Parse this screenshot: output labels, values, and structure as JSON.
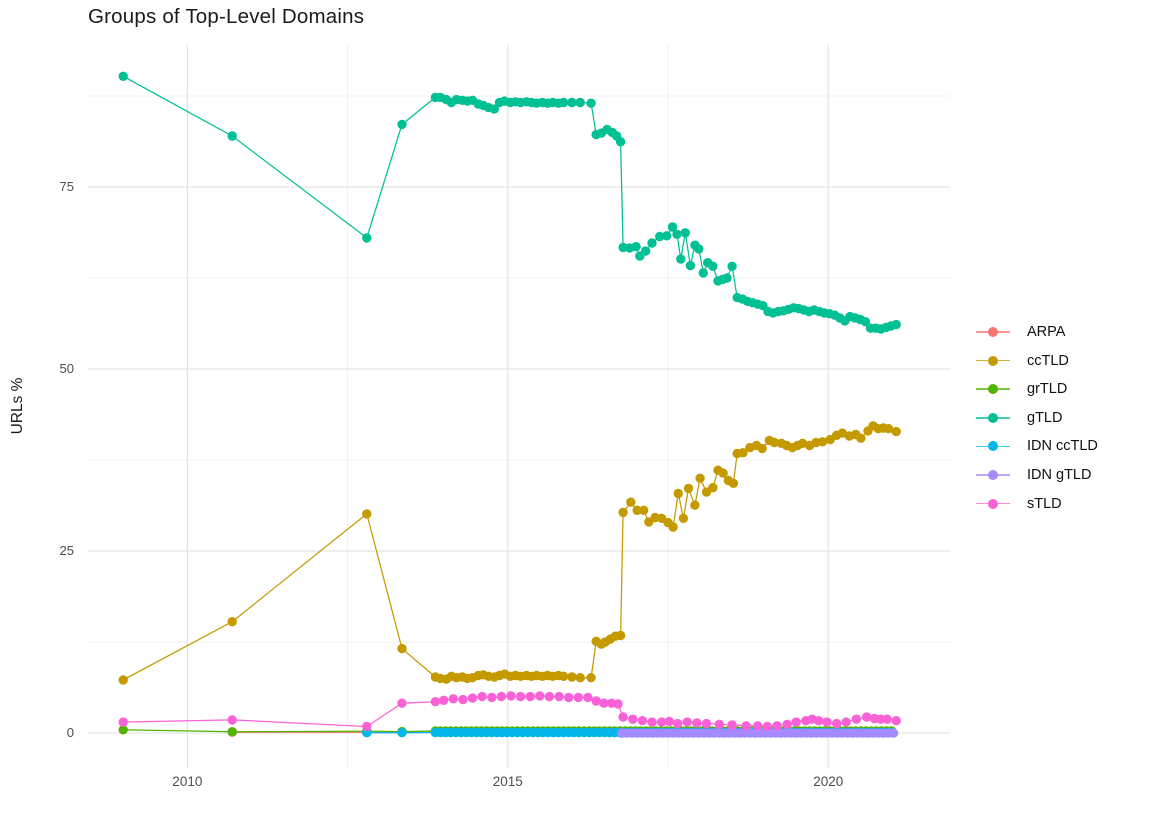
{
  "chart_data": {
    "type": "scatter",
    "title": "Groups of Top-Level Domains",
    "xlabel": "",
    "ylabel": "URLs %",
    "grid": true,
    "legend_position": "right",
    "xlim": [
      2008.45,
      2021.9
    ],
    "ylim": [
      -4.8,
      94.5
    ],
    "x_ticks": [
      {
        "value": 2010,
        "label": "2010"
      },
      {
        "value": 2015,
        "label": "2015"
      },
      {
        "value": 2020,
        "label": "2020"
      }
    ],
    "x_minor": [
      2012.5,
      2017.5
    ],
    "y_ticks": [
      {
        "value": 0,
        "label": "0"
      },
      {
        "value": 25,
        "label": "25"
      },
      {
        "value": 50,
        "label": "50"
      },
      {
        "value": 75,
        "label": "75"
      }
    ],
    "y_minor": [
      12.5,
      37.5,
      62.5,
      87.5
    ],
    "style": {
      "background": "#ffffff",
      "grid_major": "#e3e3e3",
      "grid_minor": "#efefef"
    },
    "series": [
      {
        "name": "ARPA",
        "color": "#F8766D",
        "points": [
          [
            2010.7,
            0.12
          ],
          [
            2012.8,
            0.12
          ],
          [
            2013.35,
            0.12
          ]
        ],
        "runs": [
          {
            "x0": 2013.87,
            "x1": 2021.06,
            "step": 0.08,
            "v": 0.12
          }
        ]
      },
      {
        "name": "ccTLD",
        "color": "#C49A00",
        "points": [
          [
            2009.0,
            7.3
          ],
          [
            2010.7,
            15.3
          ],
          [
            2012.8,
            30.1
          ],
          [
            2013.35,
            11.6
          ],
          [
            2013.87,
            7.7
          ],
          [
            2013.95,
            7.5
          ],
          [
            2014.04,
            7.4
          ],
          [
            2014.12,
            7.8
          ],
          [
            2014.2,
            7.6
          ],
          [
            2014.29,
            7.7
          ],
          [
            2014.37,
            7.5
          ],
          [
            2014.45,
            7.6
          ],
          [
            2014.54,
            7.9
          ],
          [
            2014.62,
            8.0
          ],
          [
            2014.7,
            7.8
          ],
          [
            2014.79,
            7.7
          ],
          [
            2014.87,
            7.9
          ],
          [
            2014.95,
            8.1
          ],
          [
            2015.04,
            7.8
          ],
          [
            2015.12,
            7.9
          ],
          [
            2015.2,
            7.8
          ],
          [
            2015.29,
            7.9
          ],
          [
            2015.37,
            7.8
          ],
          [
            2015.45,
            7.9
          ],
          [
            2015.54,
            7.8
          ],
          [
            2015.62,
            7.9
          ],
          [
            2015.7,
            7.8
          ],
          [
            2015.79,
            7.9
          ],
          [
            2015.87,
            7.8
          ],
          [
            2016.0,
            7.7
          ],
          [
            2016.13,
            7.6
          ],
          [
            2016.3,
            7.6
          ],
          [
            2016.38,
            12.6
          ],
          [
            2016.46,
            12.2
          ],
          [
            2016.52,
            12.5
          ],
          [
            2016.6,
            12.9
          ],
          [
            2016.68,
            13.3
          ],
          [
            2016.76,
            13.4
          ],
          [
            2016.8,
            30.3
          ],
          [
            2016.92,
            31.7
          ],
          [
            2017.02,
            30.6
          ],
          [
            2017.12,
            30.6
          ],
          [
            2017.2,
            29.0
          ],
          [
            2017.3,
            29.6
          ],
          [
            2017.4,
            29.5
          ],
          [
            2017.5,
            28.9
          ],
          [
            2017.58,
            28.3
          ],
          [
            2017.66,
            32.9
          ],
          [
            2017.74,
            29.5
          ],
          [
            2017.82,
            33.6
          ],
          [
            2017.92,
            31.3
          ],
          [
            2018.0,
            35.0
          ],
          [
            2018.1,
            33.1
          ],
          [
            2018.2,
            33.7
          ],
          [
            2018.28,
            36.1
          ],
          [
            2018.36,
            35.7
          ],
          [
            2018.44,
            34.7
          ],
          [
            2018.52,
            34.3
          ],
          [
            2018.58,
            38.4
          ],
          [
            2018.67,
            38.5
          ],
          [
            2018.78,
            39.2
          ],
          [
            2018.88,
            39.5
          ],
          [
            2018.97,
            39.1
          ],
          [
            2019.08,
            40.2
          ],
          [
            2019.16,
            39.9
          ],
          [
            2019.27,
            39.8
          ],
          [
            2019.35,
            39.5
          ],
          [
            2019.44,
            39.2
          ],
          [
            2019.52,
            39.5
          ],
          [
            2019.6,
            39.8
          ],
          [
            2019.71,
            39.5
          ],
          [
            2019.81,
            39.9
          ],
          [
            2019.91,
            40.0
          ],
          [
            2020.03,
            40.3
          ],
          [
            2020.13,
            40.9
          ],
          [
            2020.22,
            41.2
          ],
          [
            2020.33,
            40.8
          ],
          [
            2020.43,
            41.0
          ],
          [
            2020.51,
            40.5
          ],
          [
            2020.62,
            41.5
          ],
          [
            2020.7,
            42.2
          ],
          [
            2020.78,
            41.8
          ],
          [
            2020.86,
            41.9
          ],
          [
            2020.94,
            41.8
          ],
          [
            2021.06,
            41.4
          ]
        ],
        "runs": []
      },
      {
        "name": "grTLD",
        "color": "#53B400",
        "points": [
          [
            2009.0,
            0.45
          ],
          [
            2010.7,
            0.18
          ],
          [
            2012.8,
            0.25
          ],
          [
            2013.35,
            0.2
          ]
        ],
        "runs": [
          {
            "x0": 2013.87,
            "x1": 2021.06,
            "step": 0.08,
            "v": 0.3
          }
        ]
      },
      {
        "name": "gTLD",
        "color": "#00C094",
        "points": [
          [
            2009.0,
            90.2
          ],
          [
            2010.7,
            82.0
          ],
          [
            2012.8,
            68.0
          ],
          [
            2013.35,
            83.6
          ],
          [
            2013.87,
            87.3
          ],
          [
            2013.95,
            87.3
          ],
          [
            2014.04,
            87.0
          ],
          [
            2014.12,
            86.6
          ],
          [
            2014.2,
            87.0
          ],
          [
            2014.29,
            86.9
          ],
          [
            2014.37,
            86.8
          ],
          [
            2014.45,
            86.9
          ],
          [
            2014.54,
            86.4
          ],
          [
            2014.62,
            86.2
          ],
          [
            2014.7,
            85.9
          ],
          [
            2014.79,
            85.7
          ],
          [
            2014.87,
            86.6
          ],
          [
            2014.95,
            86.8
          ],
          [
            2015.04,
            86.6
          ],
          [
            2015.12,
            86.7
          ],
          [
            2015.2,
            86.6
          ],
          [
            2015.29,
            86.7
          ],
          [
            2015.37,
            86.6
          ],
          [
            2015.45,
            86.5
          ],
          [
            2015.54,
            86.6
          ],
          [
            2015.62,
            86.5
          ],
          [
            2015.7,
            86.6
          ],
          [
            2015.79,
            86.5
          ],
          [
            2015.87,
            86.6
          ],
          [
            2016.0,
            86.6
          ],
          [
            2016.13,
            86.6
          ],
          [
            2016.3,
            86.5
          ],
          [
            2016.38,
            82.2
          ],
          [
            2016.46,
            82.4
          ],
          [
            2016.55,
            82.9
          ],
          [
            2016.63,
            82.5
          ],
          [
            2016.7,
            82.0
          ],
          [
            2016.76,
            81.2
          ],
          [
            2016.8,
            66.7
          ],
          [
            2016.9,
            66.6
          ],
          [
            2017.0,
            66.8
          ],
          [
            2017.06,
            65.5
          ],
          [
            2017.15,
            66.2
          ],
          [
            2017.25,
            67.3
          ],
          [
            2017.37,
            68.2
          ],
          [
            2017.48,
            68.3
          ],
          [
            2017.57,
            69.5
          ],
          [
            2017.64,
            68.5
          ],
          [
            2017.7,
            65.1
          ],
          [
            2017.77,
            68.7
          ],
          [
            2017.85,
            64.2
          ],
          [
            2017.92,
            67.0
          ],
          [
            2017.98,
            66.5
          ],
          [
            2018.05,
            63.2
          ],
          [
            2018.12,
            64.6
          ],
          [
            2018.2,
            64.1
          ],
          [
            2018.28,
            62.1
          ],
          [
            2018.35,
            62.3
          ],
          [
            2018.42,
            62.5
          ],
          [
            2018.5,
            64.1
          ],
          [
            2018.58,
            59.8
          ],
          [
            2018.66,
            59.6
          ],
          [
            2018.74,
            59.3
          ],
          [
            2018.82,
            59.1
          ],
          [
            2018.9,
            58.9
          ],
          [
            2018.98,
            58.7
          ],
          [
            2019.06,
            57.9
          ],
          [
            2019.14,
            57.7
          ],
          [
            2019.22,
            57.9
          ],
          [
            2019.3,
            58.0
          ],
          [
            2019.38,
            58.2
          ],
          [
            2019.46,
            58.4
          ],
          [
            2019.54,
            58.3
          ],
          [
            2019.62,
            58.1
          ],
          [
            2019.7,
            57.9
          ],
          [
            2019.78,
            58.1
          ],
          [
            2019.86,
            57.9
          ],
          [
            2019.94,
            57.7
          ],
          [
            2020.02,
            57.6
          ],
          [
            2020.1,
            57.4
          ],
          [
            2020.18,
            57.0
          ],
          [
            2020.26,
            56.6
          ],
          [
            2020.34,
            57.2
          ],
          [
            2020.42,
            57.0
          ],
          [
            2020.5,
            56.8
          ],
          [
            2020.58,
            56.5
          ],
          [
            2020.66,
            55.6
          ],
          [
            2020.74,
            55.6
          ],
          [
            2020.82,
            55.5
          ],
          [
            2020.9,
            55.7
          ],
          [
            2020.98,
            55.9
          ],
          [
            2021.06,
            56.1
          ]
        ],
        "runs": []
      },
      {
        "name": "IDN ccTLD",
        "color": "#00B6EB",
        "points": [
          [
            2012.8,
            0.05
          ],
          [
            2013.35,
            0.05
          ]
        ],
        "runs": [
          {
            "x0": 2013.87,
            "x1": 2021.06,
            "step": 0.08,
            "v": 0.07
          }
        ]
      },
      {
        "name": "IDN gTLD",
        "color": "#A58AFF",
        "points": [],
        "runs": [
          {
            "x0": 2016.78,
            "x1": 2021.06,
            "step": 0.08,
            "v": 0.0
          }
        ]
      },
      {
        "name": "sTLD",
        "color": "#FB61D7",
        "points": [
          [
            2009.0,
            1.5
          ],
          [
            2010.7,
            1.8
          ],
          [
            2012.8,
            0.9
          ],
          [
            2013.35,
            4.1
          ],
          [
            2013.87,
            4.3
          ],
          [
            2014.0,
            4.5
          ],
          [
            2014.15,
            4.7
          ],
          [
            2014.3,
            4.6
          ],
          [
            2014.45,
            4.8
          ],
          [
            2014.6,
            5.0
          ],
          [
            2014.75,
            4.9
          ],
          [
            2014.9,
            5.0
          ],
          [
            2015.05,
            5.1
          ],
          [
            2015.2,
            5.0
          ],
          [
            2015.35,
            5.0
          ],
          [
            2015.5,
            5.1
          ],
          [
            2015.65,
            5.0
          ],
          [
            2015.8,
            5.0
          ],
          [
            2015.95,
            4.9
          ],
          [
            2016.1,
            4.9
          ],
          [
            2016.25,
            4.9
          ],
          [
            2016.38,
            4.4
          ],
          [
            2016.5,
            4.1
          ],
          [
            2016.62,
            4.1
          ],
          [
            2016.72,
            4.0
          ],
          [
            2016.8,
            2.2
          ],
          [
            2016.95,
            1.9
          ],
          [
            2017.1,
            1.7
          ],
          [
            2017.25,
            1.5
          ],
          [
            2017.4,
            1.5
          ],
          [
            2017.52,
            1.6
          ],
          [
            2017.65,
            1.3
          ],
          [
            2017.8,
            1.5
          ],
          [
            2017.95,
            1.4
          ],
          [
            2018.1,
            1.3
          ],
          [
            2018.3,
            1.2
          ],
          [
            2018.5,
            1.1
          ],
          [
            2018.72,
            1.0
          ],
          [
            2018.9,
            1.0
          ],
          [
            2019.05,
            0.9
          ],
          [
            2019.2,
            1.0
          ],
          [
            2019.36,
            1.2
          ],
          [
            2019.5,
            1.5
          ],
          [
            2019.65,
            1.7
          ],
          [
            2019.75,
            1.9
          ],
          [
            2019.85,
            1.7
          ],
          [
            2019.98,
            1.5
          ],
          [
            2020.13,
            1.3
          ],
          [
            2020.28,
            1.5
          ],
          [
            2020.44,
            1.9
          ],
          [
            2020.6,
            2.2
          ],
          [
            2020.72,
            2.0
          ],
          [
            2020.82,
            1.9
          ],
          [
            2020.92,
            1.9
          ],
          [
            2021.06,
            1.7
          ]
        ],
        "runs": []
      }
    ]
  }
}
